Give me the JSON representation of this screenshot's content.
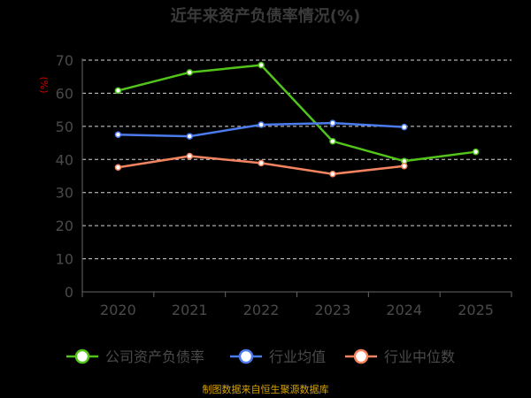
{
  "chart_data": {
    "type": "line",
    "title": "近年来资产负债率情况(%)",
    "ylabel": "(%)",
    "xlabel": "",
    "x": [
      "2020",
      "2021",
      "2022",
      "2023",
      "2024",
      "2025"
    ],
    "ylim": [
      0,
      70
    ],
    "yticks": [
      0,
      10,
      20,
      30,
      40,
      50,
      60,
      70
    ],
    "grid": true,
    "legend_position": "bottom",
    "series": [
      {
        "name": "公司资产负债率",
        "color": "#52c41a",
        "values": [
          60.8,
          66.3,
          68.5,
          45.5,
          39.5,
          42.3
        ]
      },
      {
        "name": "行业均值",
        "color": "#4b7bec",
        "values": [
          47.5,
          47.0,
          50.5,
          51.0,
          49.8,
          null
        ]
      },
      {
        "name": "行业中位数",
        "color": "#f4845f",
        "values": [
          37.6,
          41.0,
          38.9,
          35.6,
          38.0,
          null
        ]
      }
    ]
  },
  "footer": {
    "source": "制图数据来自恒生聚源数据库"
  }
}
